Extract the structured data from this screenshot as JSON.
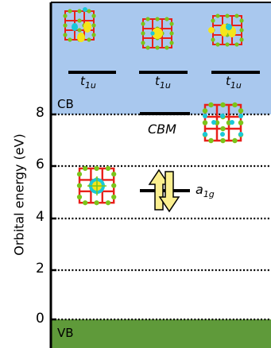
{
  "axis": {
    "ylabel": "Orbital energy (eV)",
    "ticks": [
      "0",
      "2",
      "4",
      "6",
      "8"
    ]
  },
  "bands": {
    "cb_label": "CB",
    "vb_label": "VB",
    "cb_color": "#a9c8ee",
    "vb_color": "#5f9a3a"
  },
  "levels": {
    "t1u": "t",
    "t1u_sub": "1u",
    "cbm": "CBM",
    "a1g": "a",
    "a1g_sub": "1g"
  },
  "colors": {
    "atom_red": "#e8201a",
    "atom_green": "#7ac51a",
    "atom_cyan": "#19c8d8",
    "density_yellow": "#f5e51a",
    "arrow_fill": "#fbef8f"
  }
}
